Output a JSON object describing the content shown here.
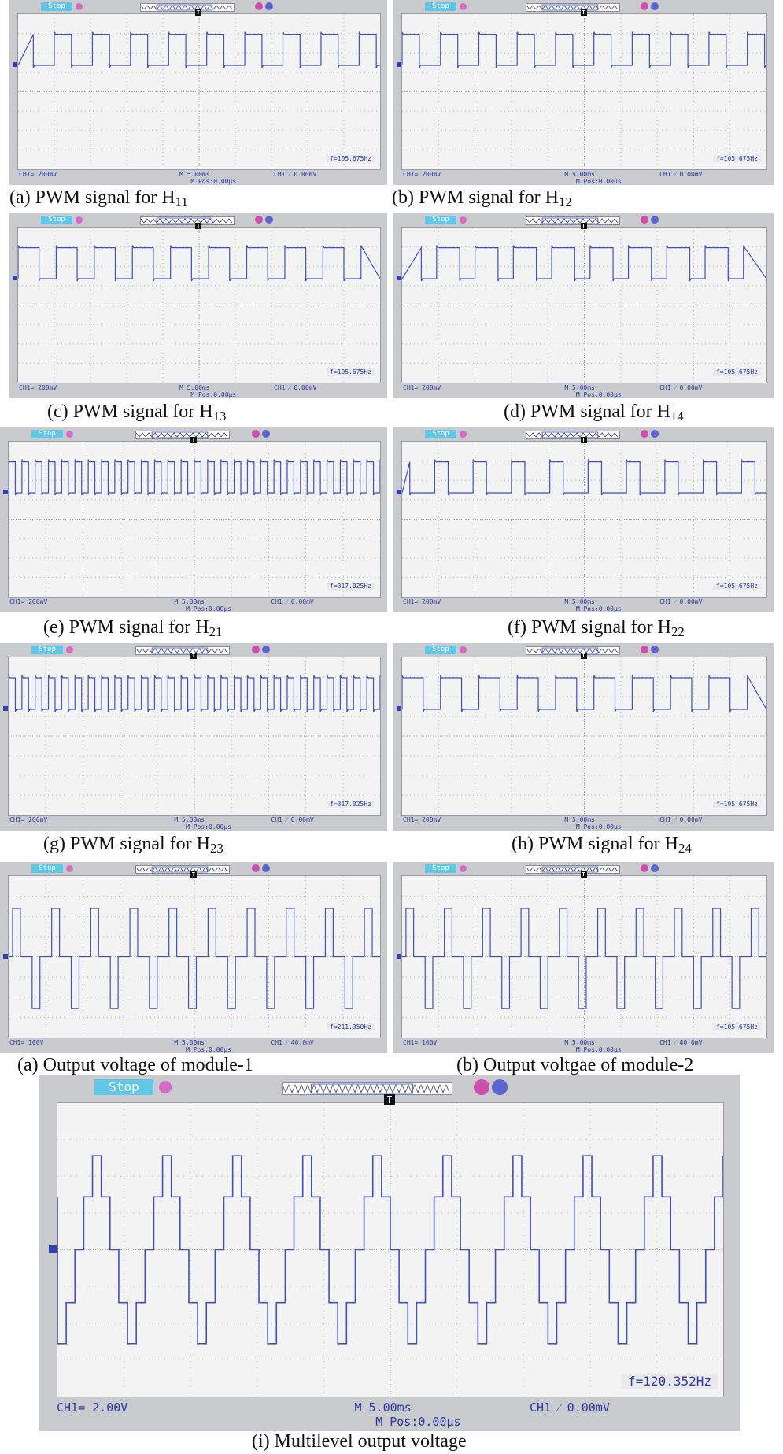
{
  "colors": {
    "trace": "#4250b8",
    "screen_bg": "#f3f3f3",
    "bezel": "#c9cacd",
    "stop_bg": "#62c6e6",
    "text": "#2a3aa3"
  },
  "panels": [
    {
      "id": "p1",
      "stop": "Stop",
      "trigger_marker": "T",
      "ch1_scale": "CH1= 200mV",
      "timebase": "M 5.00ms",
      "mpos": "M Pos:0.00µs",
      "trigger": "CH1 ⁄ 0.00mV",
      "frequency": "f=105.675Hz",
      "caption_prefix": "(a) PWM signal for H",
      "caption_sub": "11",
      "caption_suffix": ""
    },
    {
      "id": "p2",
      "stop": "Stop",
      "trigger_marker": "T",
      "ch1_scale": "CH1= 200mV",
      "timebase": "M 5.00ms",
      "mpos": "M Pos:0.00µs",
      "trigger": "CH1 ⁄ 0.00mV",
      "frequency": "f=105.675Hz",
      "caption_prefix": "(b) PWM signal for H",
      "caption_sub": "12",
      "caption_suffix": ""
    },
    {
      "id": "p3",
      "stop": "Stop",
      "trigger_marker": "T",
      "ch1_scale": "CH1= 200mV",
      "timebase": "M 5.00ms",
      "mpos": "M Pos:0.00µs",
      "trigger": "CH1 ⁄ 0.00mV",
      "frequency": "f=105.675Hz",
      "caption_prefix": "(c) PWM signal for H",
      "caption_sub": "13",
      "caption_suffix": ""
    },
    {
      "id": "p4",
      "stop": "Stop",
      "trigger_marker": "T",
      "ch1_scale": "CH1= 200mV",
      "timebase": "M 5.00ms",
      "mpos": "M Pos:0.00µs",
      "trigger": "CH1 ⁄ 0.00mV",
      "frequency": "f=105.675Hz",
      "caption_prefix": "(d) PWM signal for H",
      "caption_sub": "14",
      "caption_suffix": ""
    },
    {
      "id": "p5",
      "stop": "Stop",
      "trigger_marker": "T",
      "ch1_scale": "CH1= 200mV",
      "timebase": "M 5.00ms",
      "mpos": "M Pos:0.00µs",
      "trigger": "CH1 ⁄ 0.00mV",
      "frequency": "f=317.025Hz",
      "caption_prefix": "(e) PWM signal for H",
      "caption_sub": "21",
      "caption_suffix": ""
    },
    {
      "id": "p6",
      "stop": "Stop",
      "trigger_marker": "T",
      "ch1_scale": "CH1= 200mV",
      "timebase": "M 5.00ms",
      "mpos": "M Pos:0.00µs",
      "trigger": "CH1 ⁄ 0.00mV",
      "frequency": "f=105.675Hz",
      "caption_prefix": "(f) PWM signal for H",
      "caption_sub": "22",
      "caption_suffix": ""
    },
    {
      "id": "p7",
      "stop": "Stop",
      "trigger_marker": "T",
      "ch1_scale": "CH1= 200mV",
      "timebase": "M 5.00ms",
      "mpos": "M Pos:0.00µs",
      "trigger": "CH1 ⁄ 0.00mV",
      "frequency": "f=317.025Hz",
      "caption_prefix": "(g) PWM signal for H",
      "caption_sub": "23",
      "caption_suffix": ""
    },
    {
      "id": "p8",
      "stop": "Stop",
      "trigger_marker": "T",
      "ch1_scale": "CH1= 200mV",
      "timebase": "M 5.00ms",
      "mpos": "M Pos:0.00µs",
      "trigger": "CH1 ⁄ 0.00mV",
      "frequency": "f=105.675Hz",
      "caption_prefix": "(h) PWM signal for H",
      "caption_sub": "24",
      "caption_suffix": ""
    },
    {
      "id": "p9",
      "stop": "Stop",
      "trigger_marker": "T",
      "ch1_scale": "CH1= 100V",
      "timebase": "M 5.00ms",
      "mpos": "M Pos:0.00µs",
      "trigger": "CH1 ⁄ 40.0mV",
      "frequency": "f=211.350Hz",
      "caption_prefix": "(a) Output voltage of module-1",
      "caption_sub": "",
      "caption_suffix": ""
    },
    {
      "id": "p10",
      "stop": "Stop",
      "trigger_marker": "T",
      "ch1_scale": "CH1= 100V",
      "timebase": "M 5.00ms",
      "mpos": "M Pos:0.00µs",
      "trigger": "CH1 ⁄ 40.0mV",
      "frequency": "f=105.675Hz",
      "caption_prefix": "(b) Output voltgae of module-2",
      "caption_sub": "",
      "caption_suffix": ""
    },
    {
      "id": "p11",
      "stop": "Stop",
      "trigger_marker": "T",
      "ch1_scale": "CH1= 2.00V",
      "timebase": "M 5.00ms",
      "mpos": "M Pos:0.00µs",
      "trigger": "CH1 ⁄ 0.00mV",
      "frequency": "f=120.352Hz",
      "caption_prefix": "(i) Multilevel output voltage",
      "caption_sub": "",
      "caption_suffix": ""
    }
  ],
  "waveforms": {
    "p1": {
      "kind": "square",
      "cycles": 9.5,
      "duty": 0.45,
      "phase": 0.05
    },
    "p2": {
      "kind": "square",
      "cycles": 9.5,
      "duty": 0.45,
      "phase": 0.0
    },
    "p3": {
      "kind": "square",
      "cycles": 9.5,
      "duty": 0.55,
      "phase": 0.0
    },
    "p4": {
      "kind": "square",
      "cycles": 9.5,
      "duty": 0.6,
      "phase": 0.1
    },
    "p5": {
      "kind": "square",
      "cycles": 28,
      "duty": 0.5,
      "phase": 0.0
    },
    "p6": {
      "kind": "square",
      "cycles": 9.5,
      "duty": 0.35,
      "phase": 0.15
    },
    "p7": {
      "kind": "square",
      "cycles": 28,
      "duty": 0.5,
      "phase": 0.0
    },
    "p8": {
      "kind": "square",
      "cycles": 9.5,
      "duty": 0.55,
      "phase": 0.0
    },
    "p9": {
      "kind": "threelevel",
      "cycles": 9.5
    },
    "p10": {
      "kind": "threelevel",
      "cycles": 9.5
    },
    "p11": {
      "kind": "multilevel",
      "cycles": 9.5
    }
  }
}
